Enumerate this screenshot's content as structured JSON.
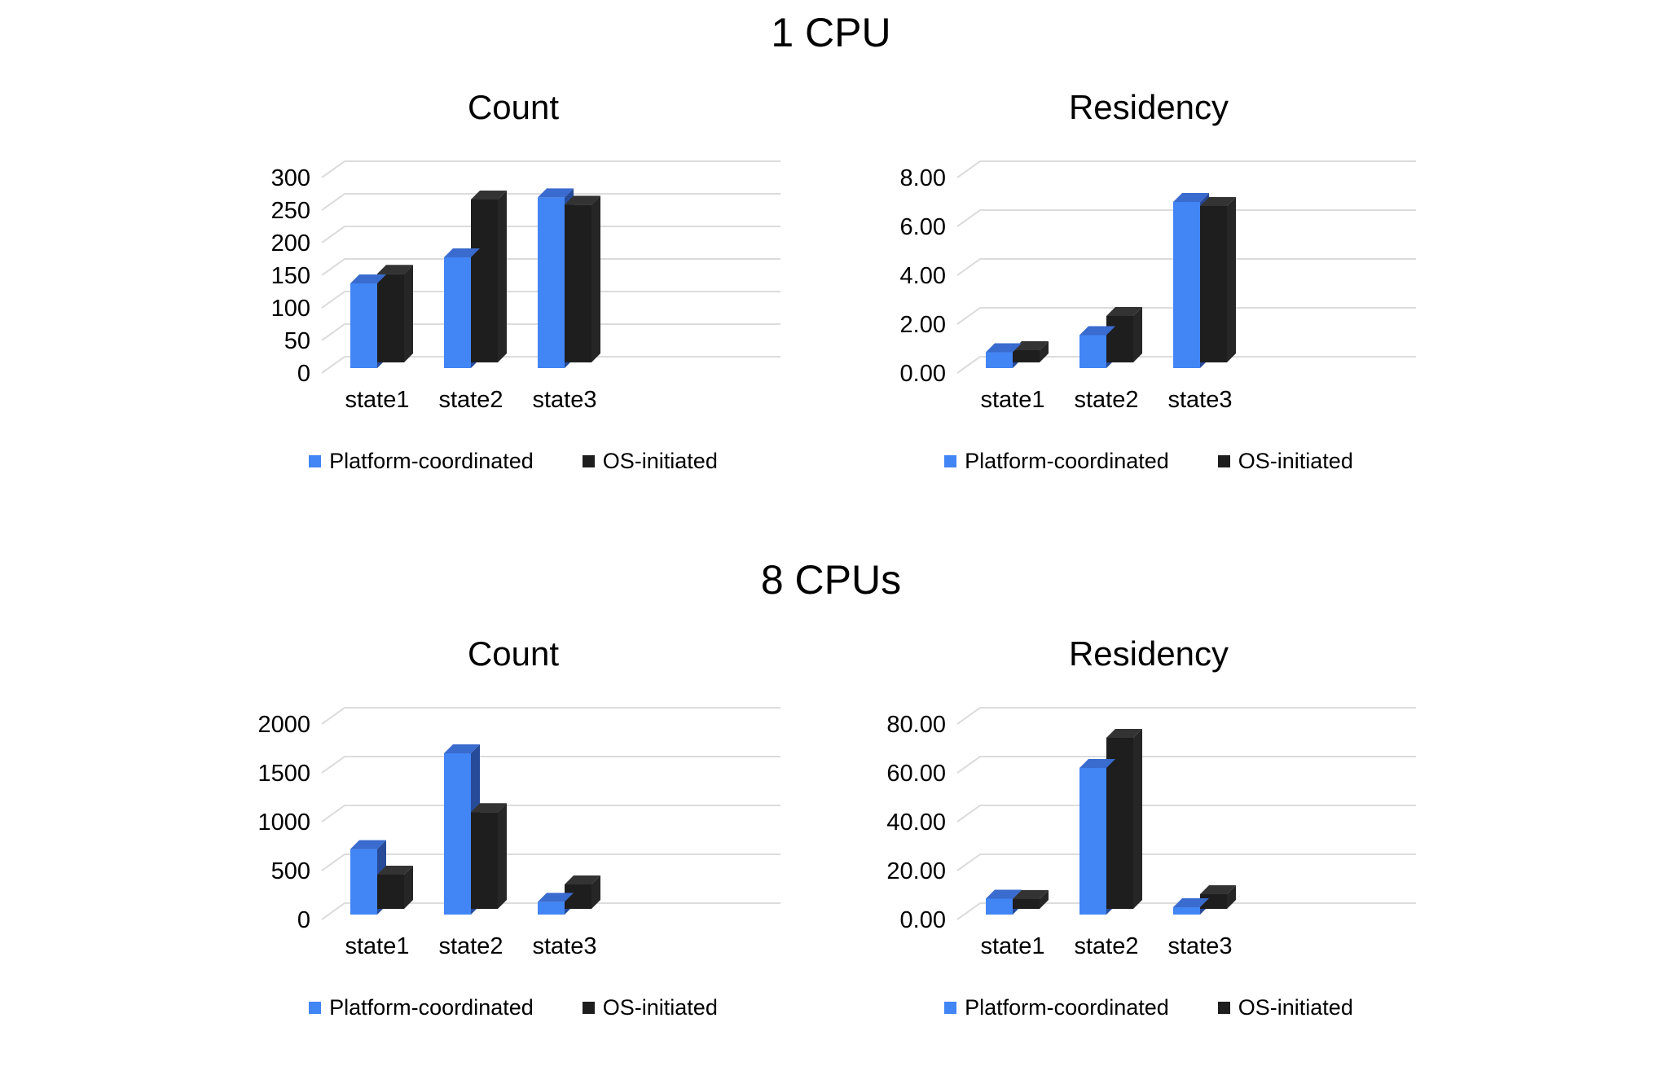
{
  "section_titles": [
    "1 CPU",
    "8 CPUs"
  ],
  "legend": {
    "items": [
      {
        "label": "Platform-coordinated",
        "color": "#4285F4"
      },
      {
        "label": "OS-initiated",
        "color": "#1E1E1E"
      }
    ]
  },
  "colors": {
    "series_faces": [
      {
        "front": "#4285F4",
        "top": "#3A6BCE",
        "side": "#274A99"
      },
      {
        "front": "#1E1E1E",
        "top": "#333333",
        "side": "#262626"
      }
    ],
    "gridline": "#DCDCDC",
    "text": "#000000",
    "background": "#FFFFFF"
  },
  "chart_data": [
    {
      "section": "1 CPU",
      "type": "bar",
      "style": "3d-column",
      "title": "Count",
      "categories": [
        "state1",
        "state2",
        "state3"
      ],
      "series": [
        {
          "name": "Platform-coordinated",
          "color": "#4285F4",
          "values": [
            130,
            170,
            262
          ]
        },
        {
          "name": "OS-initiated",
          "color": "#1E1E1E",
          "values": [
            136,
            250,
            242
          ]
        }
      ],
      "xlabel": "",
      "ylabel": "",
      "ylim": [
        0,
        300
      ],
      "yticks": [
        "0",
        "50",
        "100",
        "150",
        "200",
        "250",
        "300"
      ],
      "grid": true,
      "legend_position": "bottom"
    },
    {
      "section": "1 CPU",
      "type": "bar",
      "style": "3d-column",
      "title": "Residency",
      "categories": [
        "state1",
        "state2",
        "state3"
      ],
      "series": [
        {
          "name": "Platform-coordinated",
          "color": "#4285F4",
          "values": [
            0.65,
            1.35,
            6.8
          ]
        },
        {
          "name": "OS-initiated",
          "color": "#1E1E1E",
          "values": [
            0.5,
            1.9,
            6.4
          ]
        }
      ],
      "xlabel": "",
      "ylabel": "",
      "ylim": [
        0,
        8
      ],
      "yticks": [
        "0.00",
        "2.00",
        "4.00",
        "6.00",
        "8.00"
      ],
      "grid": true,
      "legend_position": "bottom"
    },
    {
      "section": "8 CPUs",
      "type": "bar",
      "style": "3d-column",
      "title": "Count",
      "categories": [
        "state1",
        "state2",
        "state3"
      ],
      "series": [
        {
          "name": "Platform-coordinated",
          "color": "#4285F4",
          "values": [
            670,
            1650,
            130
          ]
        },
        {
          "name": "OS-initiated",
          "color": "#1E1E1E",
          "values": [
            350,
            990,
            250
          ]
        }
      ],
      "xlabel": "",
      "ylabel": "",
      "ylim": [
        0,
        2000
      ],
      "yticks": [
        "0",
        "500",
        "1000",
        "1500",
        "2000"
      ],
      "grid": true,
      "legend_position": "bottom"
    },
    {
      "section": "8 CPUs",
      "type": "bar",
      "style": "3d-column",
      "title": "Residency",
      "categories": [
        "state1",
        "state2",
        "state3"
      ],
      "series": [
        {
          "name": "Platform-coordinated",
          "color": "#4285F4",
          "values": [
            6.5,
            60,
            3
          ]
        },
        {
          "name": "OS-initiated",
          "color": "#1E1E1E",
          "values": [
            4,
            70,
            6
          ]
        }
      ],
      "xlabel": "",
      "ylabel": "",
      "ylim": [
        0,
        80
      ],
      "yticks": [
        "0.00",
        "20.00",
        "40.00",
        "60.00",
        "80.00"
      ],
      "grid": true,
      "legend_position": "bottom"
    }
  ]
}
